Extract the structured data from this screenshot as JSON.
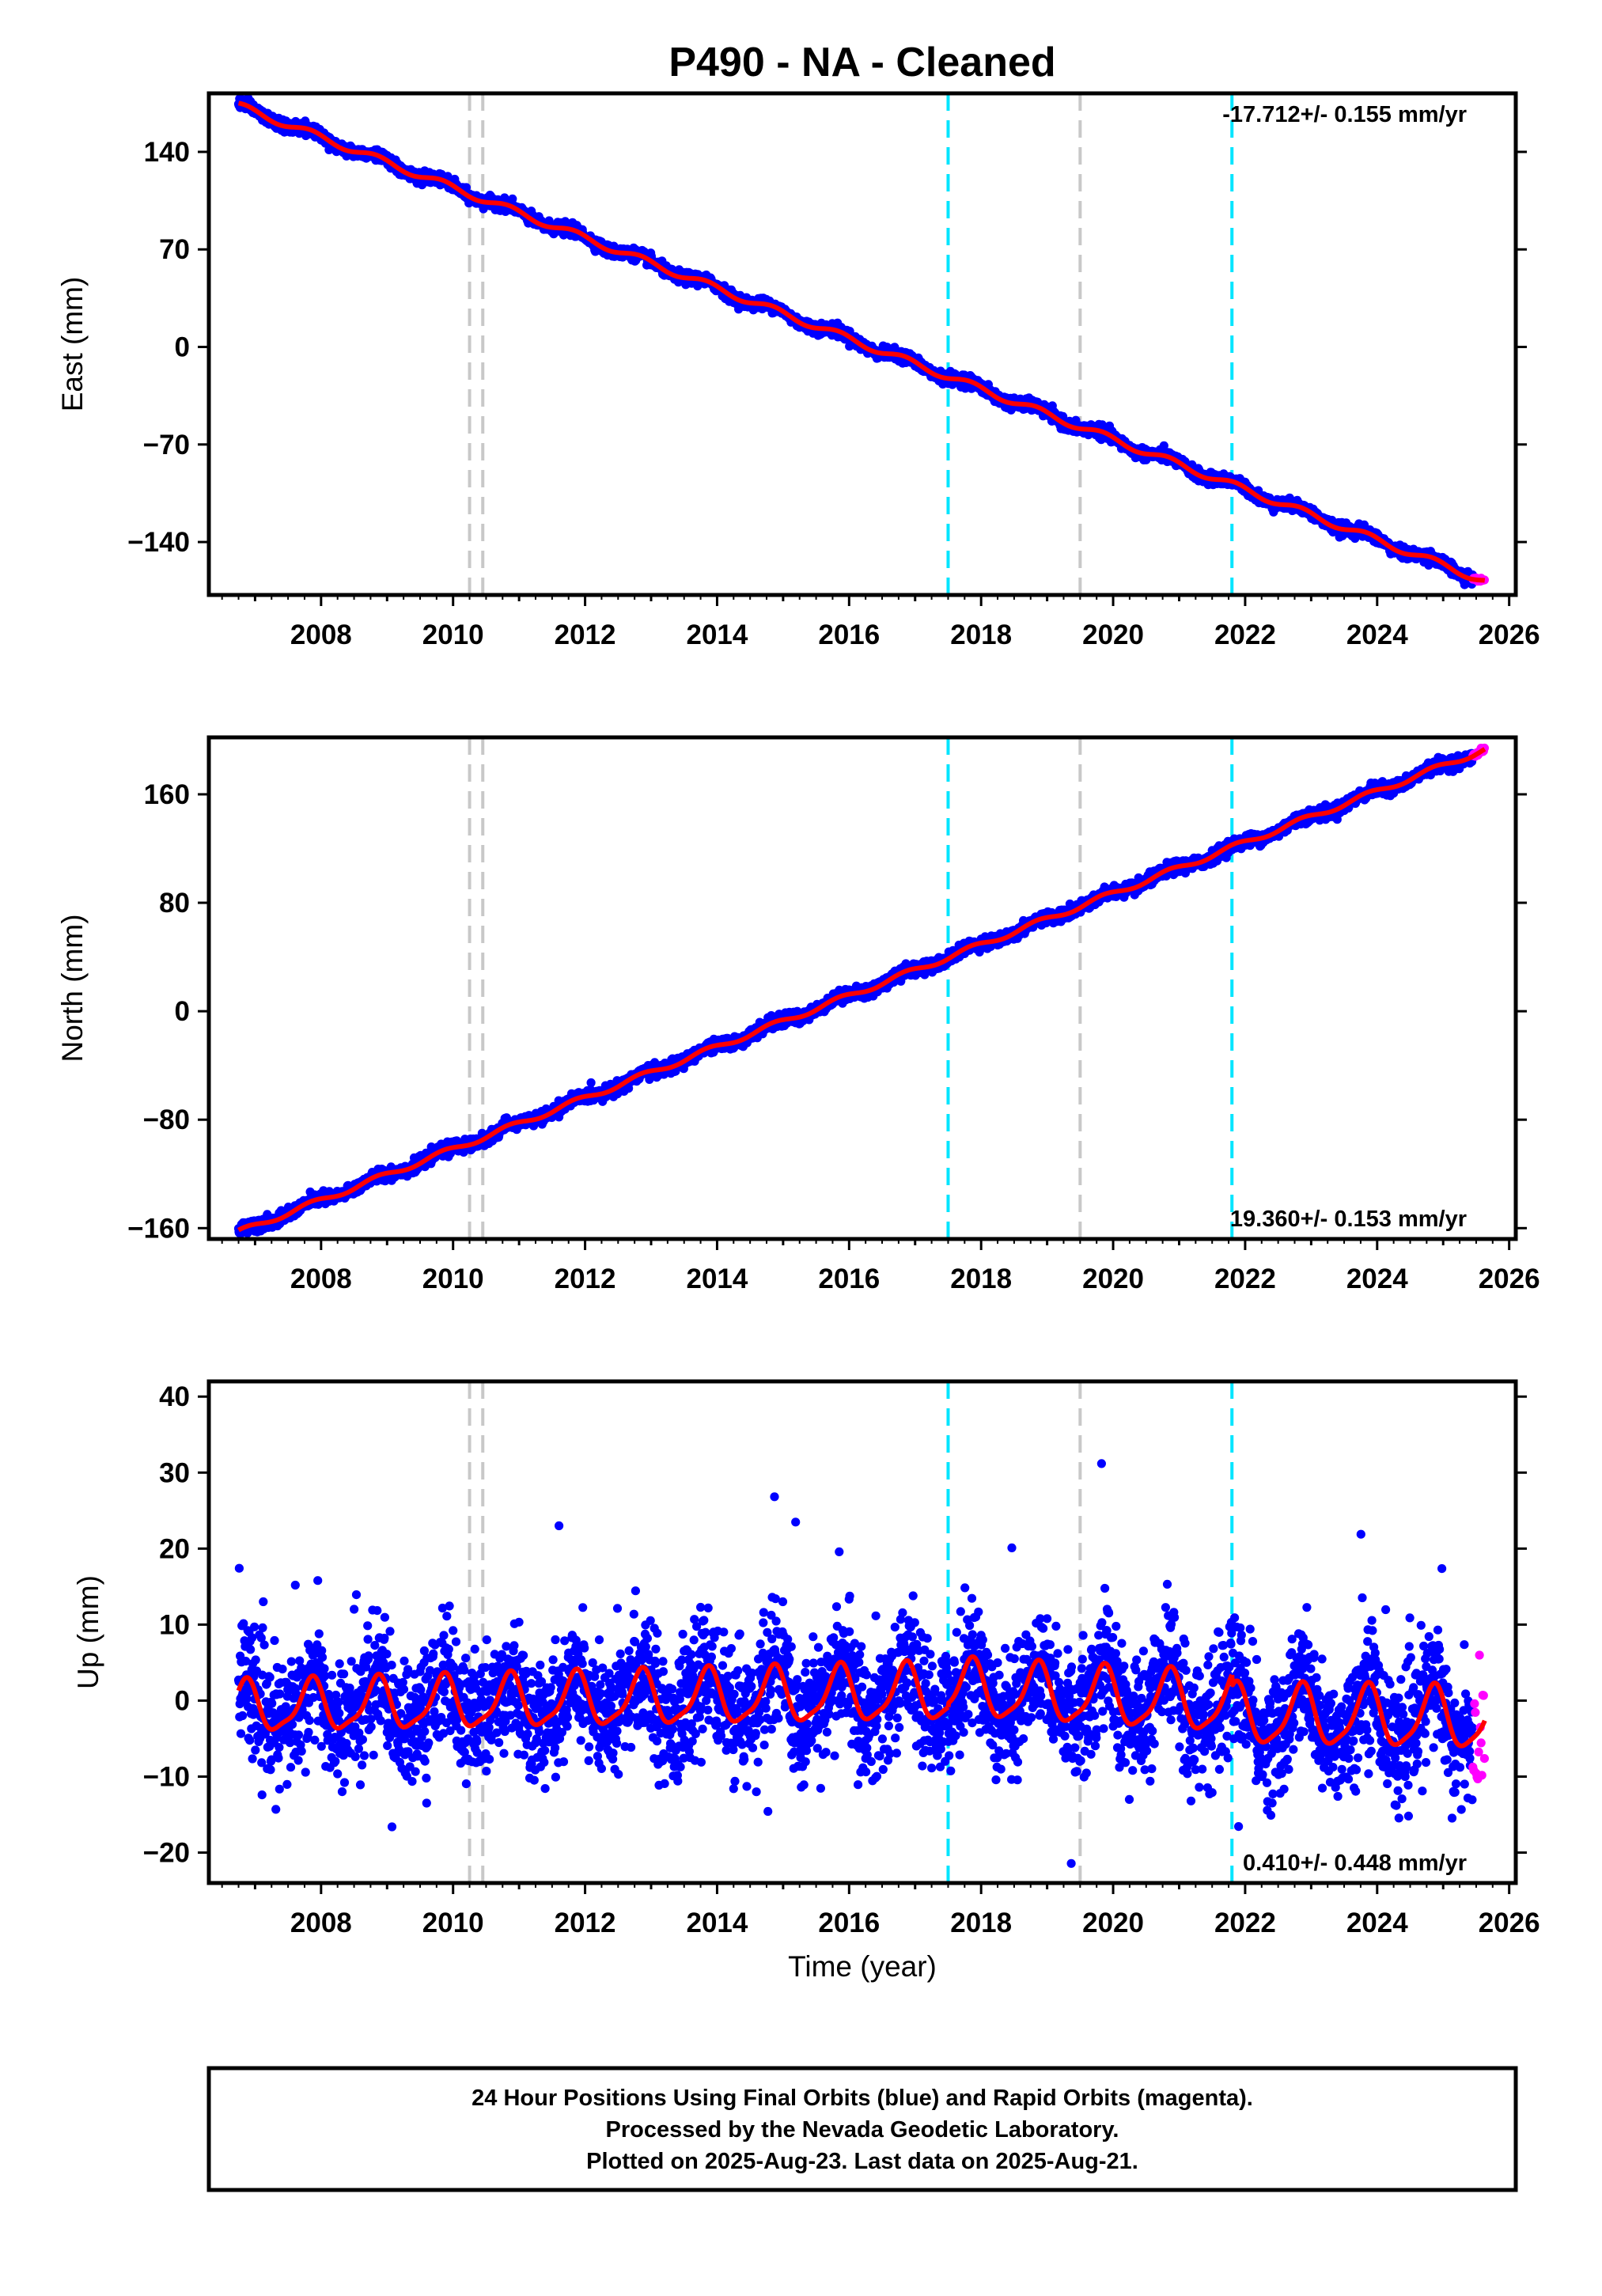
{
  "title": "P490  - NA - Cleaned",
  "colors": {
    "final_orbits": "#0000ff",
    "rapid_orbits": "#ff00ff",
    "model": "#ff0000",
    "antenna_change": "#c8c8c8",
    "equipment_change": "#00e5ff"
  },
  "markers": {
    "gray_dashed": [
      2010.25,
      2010.45,
      2019.5
    ],
    "cyan_dashed": [
      2017.5,
      2021.8
    ]
  },
  "xaxis": {
    "range": [
      2006.3,
      2026.1
    ],
    "ticks": [
      "2008",
      "2010",
      "2012",
      "2014",
      "2016",
      "2018",
      "2020",
      "2022",
      "2024",
      "2026"
    ],
    "xlabel": "Time (year)"
  },
  "chart_data": [
    {
      "type": "scatter",
      "name": "east",
      "ylabel": "East (mm)",
      "ylim": [
        -178,
        182
      ],
      "yticks": [
        "140",
        "70",
        "0",
        "−70",
        "−140"
      ],
      "ytick_values": [
        140,
        70,
        0,
        -70,
        -140
      ],
      "rate_text": "-17.712+/- 0.155 mm/yr",
      "rate_position": "top-right",
      "start": [
        2006.75,
        173
      ],
      "end": [
        2025.63,
        -168
      ],
      "seasonal_amplitude": 2.5,
      "scatter_noise": 2.0
    },
    {
      "type": "scatter",
      "name": "north",
      "ylabel": "North (mm)",
      "ylim": [
        -168,
        202
      ],
      "yticks": [
        "160",
        "80",
        "0",
        "−80",
        "−160"
      ],
      "ytick_values": [
        160,
        80,
        0,
        -80,
        -160
      ],
      "rate_text": "19.360+/- 0.153 mm/yr",
      "rate_position": "bottom-right",
      "start": [
        2006.75,
        -163
      ],
      "end": [
        2025.63,
        193
      ],
      "seasonal_amplitude": 2.0,
      "scatter_noise": 2.2
    },
    {
      "type": "scatter",
      "name": "up",
      "ylabel": "Up (mm)",
      "ylim": [
        -24,
        42
      ],
      "yticks": [
        "40",
        "30",
        "20",
        "10",
        "0",
        "−10",
        "−20"
      ],
      "ytick_values": [
        40,
        30,
        20,
        10,
        0,
        -10,
        -20
      ],
      "rate_text": "0.410+/- 0.448 mm/yr",
      "rate_position": "bottom-right",
      "offsets": [
        {
          "from": 2006.75,
          "to": 2017.5,
          "start": -1.0,
          "end": 1.0
        },
        {
          "from": 2017.5,
          "to": 2021.8,
          "start": 1.5,
          "end": -0.5
        },
        {
          "from": 2021.8,
          "to": 2025.63,
          "start": -2.0,
          "end": -2.5
        }
      ],
      "seasonal_amplitude": 3.2,
      "seasonal_trend": 0.4,
      "scatter_noise": 4.0
    }
  ],
  "footer": {
    "line1": "24 Hour Positions Using Final Orbits (blue) and Rapid Orbits (magenta).",
    "line2": "Processed by the Nevada Geodetic Laboratory.",
    "line3": "Plotted on 2025-Aug-23. Last data on 2025-Aug-21."
  }
}
